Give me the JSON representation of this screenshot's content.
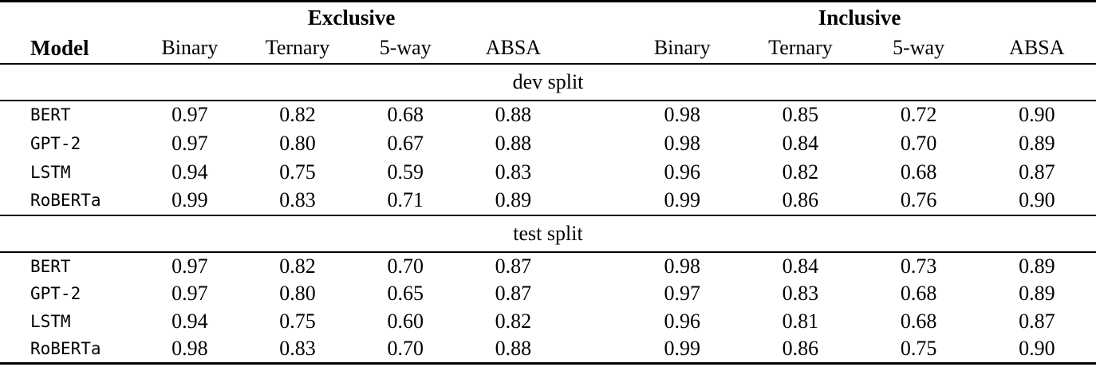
{
  "table": {
    "model_header": "Model",
    "groups": [
      {
        "label": "Exclusive"
      },
      {
        "label": "Inclusive"
      }
    ],
    "sub_headers": [
      "Binary",
      "Ternary",
      "5-way",
      "ABSA",
      "Binary",
      "Ternary",
      "5-way",
      "ABSA"
    ],
    "sections": [
      {
        "label": "dev split",
        "rows": [
          {
            "model": "BERT",
            "values": [
              "0.97",
              "0.82",
              "0.68",
              "0.88",
              "0.98",
              "0.85",
              "0.72",
              "0.90"
            ]
          },
          {
            "model": "GPT-2",
            "values": [
              "0.97",
              "0.80",
              "0.67",
              "0.88",
              "0.98",
              "0.84",
              "0.70",
              "0.89"
            ]
          },
          {
            "model": "LSTM",
            "values": [
              "0.94",
              "0.75",
              "0.59",
              "0.83",
              "0.96",
              "0.82",
              "0.68",
              "0.87"
            ]
          },
          {
            "model": "RoBERTa",
            "values": [
              "0.99",
              "0.83",
              "0.71",
              "0.89",
              "0.99",
              "0.86",
              "0.76",
              "0.90"
            ]
          }
        ]
      },
      {
        "label": "test split",
        "rows": [
          {
            "model": "BERT",
            "values": [
              "0.97",
              "0.82",
              "0.70",
              "0.87",
              "0.98",
              "0.84",
              "0.73",
              "0.89"
            ]
          },
          {
            "model": "GPT-2",
            "values": [
              "0.97",
              "0.80",
              "0.65",
              "0.87",
              "0.97",
              "0.83",
              "0.68",
              "0.89"
            ]
          },
          {
            "model": "LSTM",
            "values": [
              "0.94",
              "0.75",
              "0.60",
              "0.82",
              "0.96",
              "0.81",
              "0.68",
              "0.87"
            ]
          },
          {
            "model": "RoBERTa",
            "values": [
              "0.98",
              "0.83",
              "0.70",
              "0.88",
              "0.99",
              "0.86",
              "0.75",
              "0.90"
            ]
          }
        ]
      }
    ],
    "colors": {
      "text": "#000000",
      "background": "#ffffff",
      "rule": "#000000"
    }
  },
  "chart_data": {
    "type": "table",
    "title": "",
    "column_groups": [
      "Exclusive",
      "Inclusive"
    ],
    "columns": [
      "Model",
      "Exclusive Binary",
      "Exclusive Ternary",
      "Exclusive 5-way",
      "Exclusive ABSA",
      "Inclusive Binary",
      "Inclusive Ternary",
      "Inclusive 5-way",
      "Inclusive ABSA"
    ],
    "sections": {
      "dev split": {
        "BERT": [
          0.97,
          0.82,
          0.68,
          0.88,
          0.98,
          0.85,
          0.72,
          0.9
        ],
        "GPT-2": [
          0.97,
          0.8,
          0.67,
          0.88,
          0.98,
          0.84,
          0.7,
          0.89
        ],
        "LSTM": [
          0.94,
          0.75,
          0.59,
          0.83,
          0.96,
          0.82,
          0.68,
          0.87
        ],
        "RoBERTa": [
          0.99,
          0.83,
          0.71,
          0.89,
          0.99,
          0.86,
          0.76,
          0.9
        ]
      },
      "test split": {
        "BERT": [
          0.97,
          0.82,
          0.7,
          0.87,
          0.98,
          0.84,
          0.73,
          0.89
        ],
        "GPT-2": [
          0.97,
          0.8,
          0.65,
          0.87,
          0.97,
          0.83,
          0.68,
          0.89
        ],
        "LSTM": [
          0.94,
          0.75,
          0.6,
          0.82,
          0.96,
          0.81,
          0.68,
          0.87
        ],
        "RoBERTa": [
          0.98,
          0.83,
          0.7,
          0.88,
          0.99,
          0.86,
          0.75,
          0.9
        ]
      }
    }
  }
}
